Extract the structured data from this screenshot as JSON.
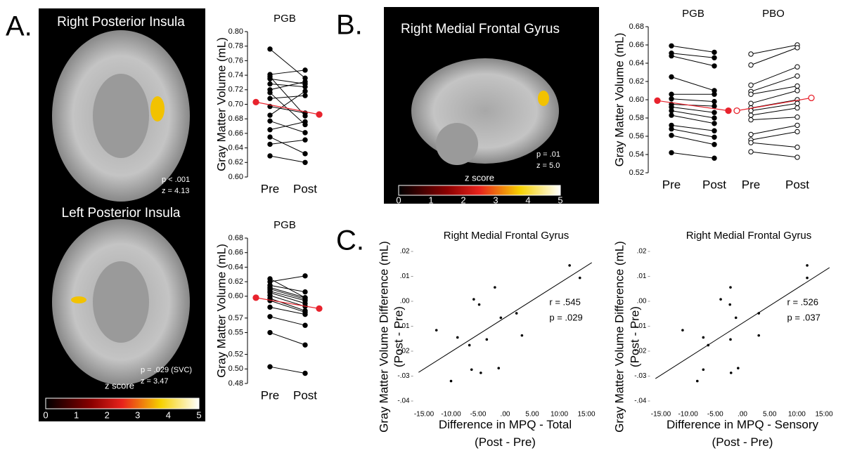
{
  "figure": {
    "panel_labels": [
      "A.",
      "B.",
      "C."
    ],
    "images": [
      {
        "title": "Right Posterior Insula",
        "stats": [
          "p < .001",
          "z = 4.13"
        ]
      },
      {
        "title": "Left Posterior Insula",
        "stats": [
          "p = .029 (SVC)",
          "z = 3.47"
        ]
      },
      {
        "title": "Right Medial Frontal Gyrus",
        "stats": [
          "p = .01",
          "z = 5.0"
        ]
      }
    ],
    "colorbars": [
      {
        "label": "z score",
        "ticks": [
          0,
          1,
          2,
          3,
          4,
          5
        ]
      },
      {
        "label": "z score",
        "ticks": [
          0,
          1,
          2,
          3,
          4,
          5
        ]
      }
    ]
  },
  "chart_data": [
    {
      "type": "paired",
      "y_label": "Gray Matter Volume (mL)",
      "ylim": [
        0.6,
        0.8
      ],
      "yticks": [
        {
          "value": 0.6,
          "label": "0.60"
        },
        0.62,
        0.64,
        0.66,
        0.68,
        {
          "value": 0.7,
          "label": "0.70"
        },
        0.72,
        0.74,
        0.76,
        0.78,
        {
          "value": 0.8,
          "label": "0.80"
        }
      ],
      "groups": [
        {
          "title": "PGB",
          "categories": [
            "Pre",
            "Post"
          ],
          "marker": "filled",
          "color": "#000000",
          "mean_color": "#e8232d",
          "pre": [
            0.776,
            0.741,
            0.738,
            0.735,
            0.728,
            0.72,
            0.716,
            0.708,
            0.697,
            0.685,
            0.677,
            0.665,
            0.655,
            0.645,
            0.629
          ],
          "post": [
            0.736,
            0.747,
            0.684,
            0.728,
            0.724,
            0.731,
            0.672,
            0.712,
            0.688,
            0.718,
            0.661,
            0.676,
            0.632,
            0.651,
            0.62
          ],
          "mean": [
            0.703,
            0.686
          ]
        }
      ]
    },
    {
      "type": "paired",
      "y_label": "Gray Matter Volume (mL)",
      "ylim": [
        0.48,
        0.68
      ],
      "yticks": [
        0.48,
        {
          "value": 0.5,
          "label": "0.50"
        },
        0.52,
        0.55,
        0.57,
        {
          "value": 0.6,
          "label": "0.60"
        },
        0.62,
        0.64,
        0.66,
        0.68
      ],
      "groups": [
        {
          "title": "PGB",
          "categories": [
            "Pre",
            "Post"
          ],
          "marker": "filled",
          "color": "#000000",
          "mean_color": "#e8232d",
          "pre": [
            0.624,
            0.62,
            0.615,
            0.612,
            0.61,
            0.607,
            0.605,
            0.601,
            0.597,
            0.594,
            0.585,
            0.572,
            0.55,
            0.503
          ],
          "post": [
            0.598,
            0.628,
            0.606,
            0.598,
            0.596,
            0.594,
            0.59,
            0.586,
            0.58,
            0.578,
            0.575,
            0.56,
            0.533,
            0.494
          ],
          "mean": [
            0.598,
            0.583
          ]
        }
      ]
    },
    {
      "type": "paired",
      "y_label": "Gray Matter Volume (mL)",
      "ylim": [
        0.52,
        0.68
      ],
      "yticks": [
        0.52,
        0.54,
        0.56,
        0.58,
        {
          "value": 0.6,
          "label": "0.60"
        },
        0.62,
        0.64,
        0.66,
        0.68
      ],
      "groups": [
        {
          "title": "PGB",
          "categories": [
            "Pre",
            "Post"
          ],
          "marker": "filled",
          "color": "#000000",
          "mean_color": "#e8232d",
          "pre": [
            0.659,
            0.651,
            0.648,
            0.625,
            0.606,
            0.601,
            0.595,
            0.592,
            0.588,
            0.583,
            0.572,
            0.568,
            0.561,
            0.542
          ],
          "post": [
            0.652,
            0.646,
            0.637,
            0.61,
            0.606,
            0.598,
            0.593,
            0.586,
            0.58,
            0.574,
            0.566,
            0.559,
            0.551,
            0.536
          ],
          "mean": [
            0.599,
            0.588
          ]
        },
        {
          "title": "PBO",
          "categories": [
            "Pre",
            "Post"
          ],
          "marker": "open",
          "color": "#000000",
          "mean_color": "#e8232d",
          "pre": [
            0.65,
            0.638,
            0.616,
            0.609,
            0.606,
            0.596,
            0.591,
            0.588,
            0.583,
            0.578,
            0.562,
            0.556,
            0.553,
            0.543
          ],
          "post": [
            0.66,
            0.657,
            0.636,
            0.626,
            0.615,
            0.61,
            0.6,
            0.596,
            0.591,
            0.581,
            0.572,
            0.565,
            0.548,
            0.537
          ],
          "mean": [
            0.588,
            0.602
          ]
        }
      ]
    },
    {
      "type": "scatter",
      "title": "Right Medial Frontal Gyrus",
      "x_label": [
        "Difference in MPQ - Total",
        "(Post - Pre)"
      ],
      "y_label": [
        "Gray Matter Volume Difference (mL)",
        "(Post - Pre)"
      ],
      "annotations": [
        "r = .545",
        "p = .029"
      ],
      "xlim": [
        -17,
        17
      ],
      "ylim": [
        -0.045,
        0.025
      ],
      "xticks": [
        {
          "value": -15,
          "label": "-15.00"
        },
        {
          "value": -10,
          "label": "-10.00"
        },
        {
          "value": -5,
          "label": "-5.00"
        },
        {
          "value": 0,
          "label": ".00"
        },
        {
          "value": 5,
          "label": "5.00"
        },
        {
          "value": 10,
          "label": "10.00"
        },
        {
          "value": 15,
          "label": "15.00"
        }
      ],
      "yticks": [
        {
          "value": 0.02,
          "label": ".02"
        },
        {
          "value": 0.01,
          "label": ".01"
        },
        {
          "value": 0,
          "label": ".00"
        },
        {
          "value": -0.01,
          "label": "-.01"
        },
        {
          "value": -0.02,
          "label": "-.02"
        },
        {
          "value": -0.03,
          "label": "-.03"
        },
        {
          "value": -0.04,
          "label": "-.04"
        }
      ],
      "color": "#000000",
      "x": [
        11.9,
        13.8,
        -12.7,
        -8.8,
        -5.8,
        -4.8,
        -1.9,
        -0.8,
        2.1,
        3.1,
        -3.4,
        -6.6,
        -6.2,
        -10.0,
        -4.5,
        -1.2
      ],
      "y": [
        0.0144,
        0.0094,
        -0.0116,
        -0.0145,
        0.0008,
        -0.0013,
        0.0056,
        -0.0066,
        -0.0048,
        -0.0137,
        -0.0153,
        -0.0176,
        -0.0274,
        -0.032,
        -0.0287,
        -0.0268
      ],
      "fit": {
        "x": [
          -16,
          16
        ],
        "y": [
          -0.0285,
          0.0155
        ]
      }
    },
    {
      "type": "scatter",
      "title": "Right Medial Frontal Gyrus",
      "x_label": [
        "Difference in MPQ - Sensory",
        "(Post - Pre)"
      ],
      "y_label": [
        "Gray Matter Volume Difference (mL)",
        "(Post - Pre)"
      ],
      "annotations": [
        "r = .526",
        "p = .037"
      ],
      "xlim": [
        -17,
        17
      ],
      "ylim": [
        -0.045,
        0.025
      ],
      "xticks": [
        {
          "value": -15,
          "label": "-15.00"
        },
        {
          "value": -10,
          "label": "-10.00"
        },
        {
          "value": -5,
          "label": "-5.00"
        },
        {
          "value": 0,
          "label": ".00"
        },
        {
          "value": 5,
          "label": "5.00"
        },
        {
          "value": 10,
          "label": "10.00"
        },
        {
          "value": 15,
          "label": "15.00"
        }
      ],
      "yticks": [
        {
          "value": 0.02,
          "label": ".02"
        },
        {
          "value": 0.01,
          "label": ".01"
        },
        {
          "value": 0,
          "label": ".00"
        },
        {
          "value": -0.01,
          "label": "-.01"
        },
        {
          "value": -0.02,
          "label": "-.02"
        },
        {
          "value": -0.03,
          "label": "-.03"
        },
        {
          "value": -0.04,
          "label": "-.04"
        }
      ],
      "color": "#000000",
      "x": [
        11.9,
        11.9,
        -11.0,
        -7.2,
        -4.0,
        -2.3,
        -2.2,
        -1.2,
        3.0,
        3.0,
        -2.2,
        -6.3,
        -7.2,
        -8.3,
        -2.1,
        -0.8
      ],
      "y": [
        0.0144,
        0.0094,
        -0.0116,
        -0.0145,
        0.0008,
        -0.0013,
        0.0056,
        -0.0066,
        -0.0048,
        -0.0137,
        -0.0153,
        -0.0176,
        -0.0274,
        -0.032,
        -0.0287,
        -0.0268
      ],
      "fit": {
        "x": [
          -16,
          16
        ],
        "y": [
          -0.031,
          0.0135
        ]
      }
    }
  ]
}
